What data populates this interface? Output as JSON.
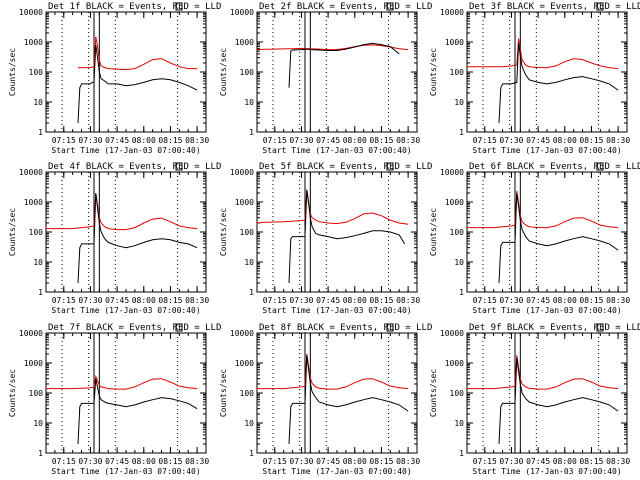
{
  "figure": {
    "ylabel": "Counts/sec",
    "x_start_label": "Start Time (17-Jan-03 07:00:40)",
    "x_tick_labels": [
      "07:15",
      "07:30",
      "07:45",
      "08:00",
      "08:15",
      "08:30"
    ],
    "y_tick_labels": [
      "1",
      "10",
      "100",
      "1000",
      "10000"
    ],
    "series_colors": {
      "events": "#000000",
      "lld": "#e00000"
    }
  },
  "chart_data": [
    {
      "type": "line",
      "title": "Det 1f BLACK = Events, RED = LLD",
      "xlabel": "Start Time (17-Jan-03 07:00:40)",
      "ylabel": "Counts/sec",
      "x_unit": "minutes after 07:00",
      "xlim": [
        5,
        95
      ],
      "ylim": [
        1,
        10000
      ],
      "yscale": "log",
      "series": [
        {
          "name": "Events",
          "color": "#000000",
          "x": [
            23,
            24,
            25,
            29,
            30,
            31,
            32,
            33,
            34,
            35,
            36,
            38,
            40,
            45,
            50,
            55,
            60,
            65,
            70,
            75,
            80,
            85,
            90
          ],
          "y": [
            2,
            30,
            40,
            40,
            40,
            45,
            45,
            800,
            300,
            100,
            60,
            50,
            40,
            40,
            35,
            38,
            45,
            55,
            60,
            55,
            45,
            35,
            25
          ]
        },
        {
          "name": "LLD",
          "color": "#e00000",
          "x": [
            23,
            25,
            30,
            32,
            33,
            34,
            35,
            36,
            38,
            40,
            45,
            50,
            55,
            60,
            65,
            70,
            75,
            80,
            85,
            90
          ],
          "y": [
            140,
            140,
            140,
            150,
            1500,
            700,
            250,
            160,
            140,
            130,
            125,
            120,
            130,
            180,
            260,
            280,
            200,
            150,
            130,
            130
          ]
        }
      ],
      "vertical_lines_solid": [
        32,
        35
      ],
      "vertical_lines_dotted": [
        14,
        29,
        44,
        79
      ]
    },
    {
      "type": "line",
      "title": "Det 2f BLACK = Events, RED = LLD",
      "xlabel": "Start Time (17-Jan-03 07:00:40)",
      "ylabel": "Counts/sec",
      "x_unit": "minutes after 07:00",
      "xlim": [
        5,
        95
      ],
      "ylim": [
        1,
        10000
      ],
      "yscale": "log",
      "series": [
        {
          "name": "Events",
          "color": "#000000",
          "x": [
            23,
            24,
            25,
            30,
            33,
            35,
            40,
            45,
            50,
            55,
            60,
            65,
            70,
            75,
            80,
            85
          ],
          "y": [
            30,
            500,
            540,
            560,
            580,
            560,
            540,
            520,
            520,
            580,
            680,
            820,
            900,
            820,
            700,
            400
          ]
        },
        {
          "name": "LLD",
          "color": "#e00000",
          "x": [
            5,
            10,
            15,
            20,
            25,
            30,
            35,
            40,
            45,
            50,
            55,
            60,
            65,
            70,
            75,
            80,
            85,
            90
          ],
          "y": [
            560,
            570,
            580,
            590,
            600,
            610,
            600,
            580,
            560,
            560,
            610,
            700,
            780,
            800,
            760,
            680,
            600,
            560
          ]
        }
      ],
      "vertical_lines_solid": [
        32,
        35
      ],
      "vertical_lines_dotted": [
        14,
        29,
        44,
        79
      ]
    },
    {
      "type": "line",
      "title": "Det 3f BLACK = Events, RED = LLD",
      "xlabel": "Start Time (17-Jan-03 07:00:40)",
      "ylabel": "Counts/sec",
      "x_unit": "minutes after 07:00",
      "xlim": [
        5,
        95
      ],
      "ylim": [
        1,
        10000
      ],
      "yscale": "log",
      "series": [
        {
          "name": "Events",
          "color": "#000000",
          "x": [
            23,
            24,
            25,
            30,
            33,
            34,
            35,
            36,
            38,
            40,
            45,
            50,
            55,
            60,
            65,
            70,
            75,
            80,
            85,
            90
          ],
          "y": [
            2,
            30,
            40,
            40,
            45,
            900,
            350,
            150,
            80,
            55,
            45,
            40,
            45,
            55,
            65,
            70,
            60,
            50,
            40,
            25
          ]
        },
        {
          "name": "LLD",
          "color": "#e00000",
          "x": [
            5,
            10,
            20,
            25,
            30,
            33,
            34,
            35,
            36,
            38,
            40,
            45,
            50,
            55,
            60,
            65,
            70,
            75,
            80,
            85,
            90
          ],
          "y": [
            150,
            150,
            150,
            150,
            160,
            170,
            1300,
            600,
            250,
            170,
            150,
            140,
            140,
            160,
            220,
            280,
            260,
            200,
            160,
            140,
            130
          ]
        }
      ],
      "vertical_lines_solid": [
        32,
        35
      ],
      "vertical_lines_dotted": [
        14,
        29,
        44,
        79
      ]
    },
    {
      "type": "line",
      "title": "Det 4f BLACK = Events, RED = LLD",
      "xlabel": "Start Time (17-Jan-03 07:00:40)",
      "ylabel": "Counts/sec",
      "x_unit": "minutes after 07:00",
      "xlim": [
        5,
        95
      ],
      "ylim": [
        1,
        10000
      ],
      "yscale": "log",
      "series": [
        {
          "name": "Events",
          "color": "#000000",
          "x": [
            23,
            24,
            25,
            30,
            32,
            33,
            34,
            35,
            36,
            38,
            40,
            45,
            50,
            55,
            60,
            65,
            70,
            75,
            80,
            85,
            90
          ],
          "y": [
            2,
            30,
            40,
            40,
            40,
            2000,
            600,
            200,
            100,
            60,
            45,
            35,
            30,
            35,
            45,
            55,
            60,
            55,
            45,
            40,
            30
          ]
        },
        {
          "name": "LLD",
          "color": "#e00000",
          "x": [
            5,
            10,
            20,
            25,
            30,
            32,
            33,
            34,
            35,
            36,
            38,
            40,
            45,
            50,
            55,
            60,
            65,
            70,
            75,
            80,
            85,
            90
          ],
          "y": [
            130,
            130,
            130,
            140,
            150,
            160,
            1900,
            800,
            300,
            200,
            150,
            130,
            120,
            120,
            140,
            200,
            270,
            290,
            220,
            160,
            140,
            130
          ]
        }
      ],
      "vertical_lines_solid": [
        32,
        35
      ],
      "vertical_lines_dotted": [
        14,
        29,
        44,
        79
      ]
    },
    {
      "type": "line",
      "title": "Det 5f BLACK = Events, RED = LLD",
      "xlabel": "Start Time (17-Jan-03 07:00:40)",
      "ylabel": "Counts/sec",
      "x_unit": "minutes after 07:00",
      "xlim": [
        5,
        95
      ],
      "ylim": [
        1,
        10000
      ],
      "yscale": "log",
      "series": [
        {
          "name": "Events",
          "color": "#000000",
          "x": [
            23,
            24,
            25,
            30,
            32,
            33,
            34,
            35,
            36,
            38,
            40,
            45,
            50,
            55,
            60,
            65,
            70,
            75,
            80,
            85,
            88
          ],
          "y": [
            2,
            60,
            70,
            70,
            70,
            2500,
            900,
            300,
            150,
            90,
            80,
            70,
            60,
            65,
            75,
            90,
            110,
            110,
            100,
            80,
            40
          ]
        },
        {
          "name": "LLD",
          "color": "#e00000",
          "x": [
            5,
            10,
            20,
            25,
            30,
            32,
            33,
            34,
            35,
            36,
            38,
            40,
            45,
            50,
            55,
            60,
            65,
            70,
            75,
            80,
            85,
            90
          ],
          "y": [
            200,
            210,
            220,
            230,
            240,
            250,
            2600,
            1000,
            400,
            300,
            250,
            220,
            200,
            190,
            210,
            280,
            400,
            430,
            350,
            250,
            200,
            180
          ]
        }
      ],
      "vertical_lines_solid": [
        32,
        35
      ],
      "vertical_lines_dotted": [
        14,
        29,
        44,
        79
      ]
    },
    {
      "type": "line",
      "title": "Det 6f BLACK = Events, RED = LLD",
      "xlabel": "Start Time (17-Jan-03 07:00:40)",
      "ylabel": "Counts/sec",
      "x_unit": "minutes after 07:00",
      "xlim": [
        5,
        95
      ],
      "ylim": [
        1,
        10000
      ],
      "yscale": "log",
      "series": [
        {
          "name": "Events",
          "color": "#000000",
          "x": [
            23,
            24,
            25,
            30,
            32,
            33,
            34,
            35,
            36,
            38,
            40,
            45,
            50,
            55,
            60,
            65,
            70,
            75,
            80,
            85,
            90
          ],
          "y": [
            2,
            35,
            45,
            45,
            45,
            2000,
            700,
            250,
            120,
            70,
            50,
            40,
            35,
            40,
            50,
            60,
            70,
            60,
            50,
            40,
            25
          ]
        },
        {
          "name": "LLD",
          "color": "#e00000",
          "x": [
            5,
            10,
            20,
            25,
            30,
            32,
            33,
            34,
            35,
            36,
            38,
            40,
            45,
            50,
            55,
            60,
            65,
            70,
            75,
            80,
            85,
            90
          ],
          "y": [
            140,
            140,
            140,
            150,
            160,
            170,
            2300,
            900,
            350,
            220,
            170,
            150,
            140,
            140,
            160,
            220,
            290,
            300,
            230,
            170,
            150,
            140
          ]
        }
      ],
      "vertical_lines_solid": [
        32,
        35
      ],
      "vertical_lines_dotted": [
        14,
        29,
        44,
        79
      ]
    },
    {
      "type": "line",
      "title": "Det 7f BLACK = Events, RED = LLD",
      "xlabel": "Start Time (17-Jan-03 07:00:40)",
      "ylabel": "Counts/sec",
      "x_unit": "minutes after 07:00",
      "xlim": [
        5,
        95
      ],
      "ylim": [
        1,
        10000
      ],
      "yscale": "log",
      "series": [
        {
          "name": "Events",
          "color": "#000000",
          "x": [
            23,
            24,
            25,
            30,
            32,
            33,
            34,
            35,
            36,
            38,
            40,
            45,
            50,
            55,
            60,
            65,
            70,
            75,
            80,
            85,
            90
          ],
          "y": [
            2,
            35,
            45,
            45,
            45,
            300,
            150,
            80,
            60,
            50,
            45,
            40,
            35,
            40,
            50,
            60,
            70,
            65,
            55,
            45,
            30
          ]
        },
        {
          "name": "LLD",
          "color": "#e00000",
          "x": [
            5,
            10,
            20,
            25,
            30,
            32,
            33,
            34,
            35,
            36,
            38,
            40,
            45,
            50,
            55,
            60,
            65,
            70,
            75,
            80,
            85,
            90
          ],
          "y": [
            140,
            140,
            140,
            145,
            150,
            160,
            350,
            250,
            180,
            160,
            150,
            140,
            135,
            135,
            160,
            220,
            290,
            300,
            230,
            170,
            150,
            140
          ]
        }
      ],
      "vertical_lines_solid": [
        32,
        35
      ],
      "vertical_lines_dotted": [
        14,
        29,
        44,
        79
      ]
    },
    {
      "type": "line",
      "title": "Det 8f BLACK = Events, RED = LLD",
      "xlabel": "Start Time (17-Jan-03 07:00:40)",
      "ylabel": "Counts/sec",
      "x_unit": "minutes after 07:00",
      "xlim": [
        5,
        95
      ],
      "ylim": [
        1,
        10000
      ],
      "yscale": "log",
      "series": [
        {
          "name": "Events",
          "color": "#000000",
          "x": [
            23,
            24,
            25,
            30,
            32,
            33,
            34,
            35,
            36,
            38,
            40,
            45,
            50,
            55,
            60,
            65,
            70,
            75,
            80,
            85,
            90
          ],
          "y": [
            2,
            35,
            45,
            45,
            45,
            1800,
            600,
            220,
            110,
            70,
            50,
            40,
            35,
            40,
            50,
            60,
            70,
            60,
            50,
            40,
            25
          ]
        },
        {
          "name": "LLD",
          "color": "#e00000",
          "x": [
            5,
            10,
            20,
            25,
            30,
            32,
            33,
            34,
            35,
            36,
            38,
            40,
            45,
            50,
            55,
            60,
            65,
            70,
            75,
            80,
            85,
            90
          ],
          "y": [
            140,
            140,
            140,
            150,
            160,
            170,
            2000,
            800,
            320,
            210,
            160,
            145,
            135,
            135,
            160,
            220,
            290,
            300,
            230,
            170,
            150,
            140
          ]
        }
      ],
      "vertical_lines_solid": [
        32,
        35
      ],
      "vertical_lines_dotted": [
        14,
        29,
        44,
        79
      ]
    },
    {
      "type": "line",
      "title": "Det 9f BLACK = Events, RED = LLD",
      "xlabel": "Start Time (17-Jan-03 07:00:40)",
      "ylabel": "Counts/sec",
      "x_unit": "minutes after 07:00",
      "xlim": [
        5,
        95
      ],
      "ylim": [
        1,
        10000
      ],
      "yscale": "log",
      "series": [
        {
          "name": "Events",
          "color": "#000000",
          "x": [
            23,
            24,
            25,
            30,
            32,
            33,
            34,
            35,
            36,
            38,
            40,
            45,
            50,
            55,
            60,
            65,
            70,
            75,
            80,
            85,
            90
          ],
          "y": [
            2,
            35,
            45,
            45,
            45,
            1500,
            500,
            200,
            100,
            65,
            50,
            40,
            35,
            40,
            50,
            60,
            70,
            60,
            50,
            40,
            25
          ]
        },
        {
          "name": "LLD",
          "color": "#e00000",
          "x": [
            5,
            10,
            20,
            25,
            30,
            32,
            33,
            34,
            35,
            36,
            38,
            40,
            45,
            50,
            55,
            60,
            65,
            70,
            75,
            80,
            85,
            90
          ],
          "y": [
            140,
            140,
            140,
            150,
            160,
            170,
            1800,
            700,
            300,
            200,
            160,
            145,
            135,
            135,
            160,
            220,
            290,
            300,
            230,
            170,
            150,
            140
          ]
        }
      ],
      "vertical_lines_solid": [
        32,
        35
      ],
      "vertical_lines_dotted": [
        14,
        29,
        44,
        79
      ]
    }
  ]
}
